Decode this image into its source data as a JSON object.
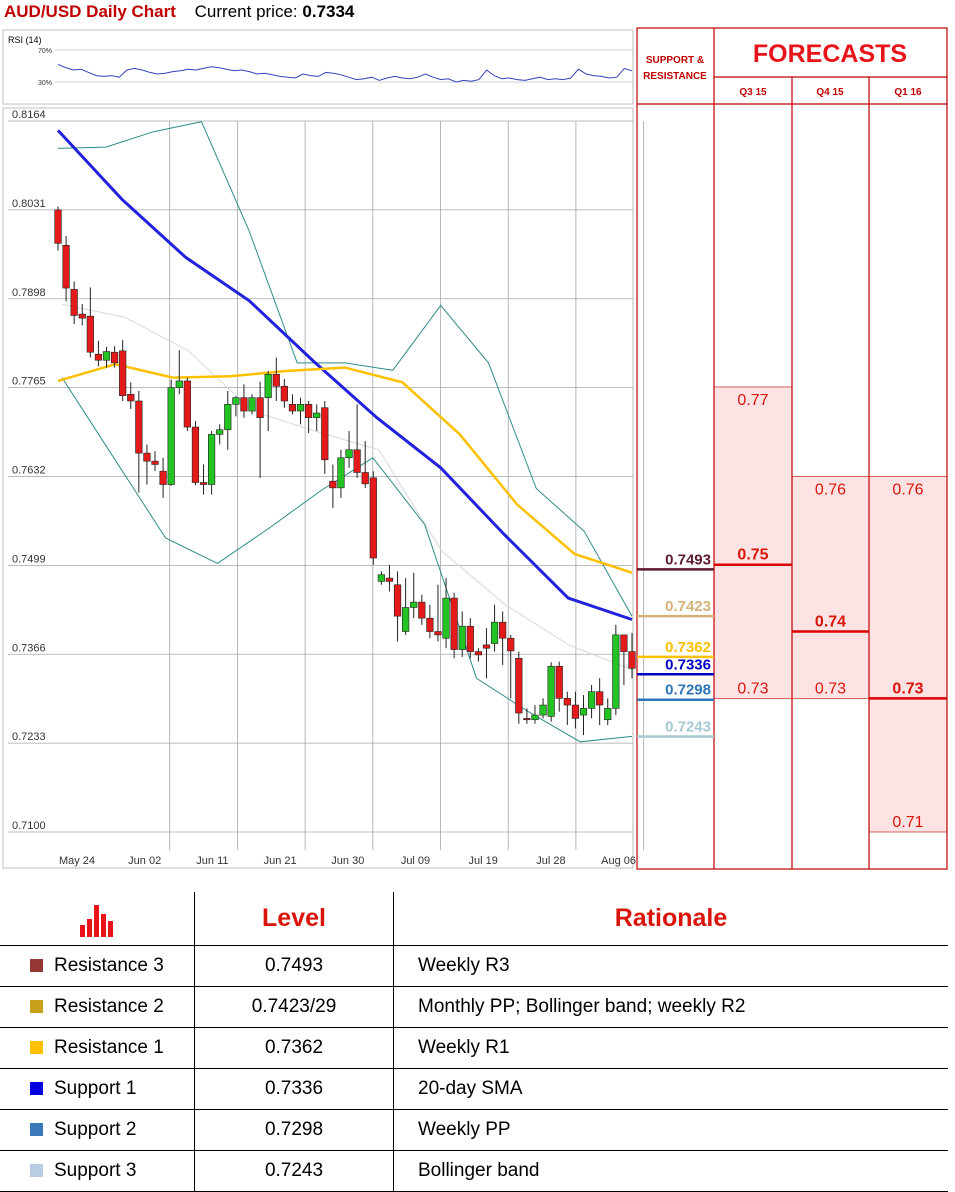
{
  "header": {
    "title": "AUD/USD Daily Chart",
    "current_label": "Current price:",
    "current_value": "0.7334"
  },
  "rsi": {
    "label": "RSI (14)",
    "upper": "70%",
    "lower": "30%",
    "values": [
      52,
      48,
      45,
      46,
      42,
      38,
      37,
      38,
      36,
      45,
      47,
      45,
      42,
      40,
      41,
      43,
      44,
      46,
      45,
      47,
      49,
      48,
      46,
      44,
      45,
      43,
      40,
      41,
      39,
      37,
      36,
      35,
      40,
      38,
      37,
      42,
      41,
      39,
      36,
      33,
      34,
      36,
      32,
      35,
      37,
      35,
      34,
      36,
      40,
      36,
      33,
      34,
      30,
      32,
      31,
      33,
      45,
      38,
      34,
      35,
      33,
      32,
      34,
      36,
      33,
      34,
      33,
      35,
      46,
      40,
      38,
      37,
      35,
      36,
      47,
      44
    ]
  },
  "chart_data": {
    "type": "candlestick",
    "title": "AUD/USD Daily Chart",
    "y_ticks": [
      "0.8164",
      "0.8031",
      "0.7898",
      "0.7765",
      "0.7632",
      "0.7499",
      "0.7366",
      "0.7233",
      "0.7100"
    ],
    "x_ticks": [
      "May 24",
      "Jun 02",
      "Jun 11",
      "Jun 21",
      "Jun 30",
      "Jul 09",
      "Jul 19",
      "Jul 28",
      "Aug 06"
    ],
    "ylim": [
      0.71,
      0.8164
    ],
    "grid": true,
    "candles": [
      {
        "o": 0.8031,
        "h": 0.8036,
        "c": 0.7981,
        "l": 0.797
      },
      {
        "o": 0.7978,
        "h": 0.7992,
        "c": 0.7914,
        "l": 0.7894
      },
      {
        "o": 0.7912,
        "h": 0.7924,
        "c": 0.7873,
        "l": 0.786
      },
      {
        "o": 0.7875,
        "h": 0.789,
        "c": 0.7869,
        "l": 0.7858
      },
      {
        "o": 0.7872,
        "h": 0.7915,
        "c": 0.7818,
        "l": 0.781
      },
      {
        "o": 0.7815,
        "h": 0.7835,
        "c": 0.7806,
        "l": 0.7797
      },
      {
        "o": 0.7806,
        "h": 0.7826,
        "c": 0.7819,
        "l": 0.7795
      },
      {
        "o": 0.7818,
        "h": 0.7827,
        "c": 0.7802,
        "l": 0.7795
      },
      {
        "o": 0.782,
        "h": 0.7836,
        "c": 0.7753,
        "l": 0.7745
      },
      {
        "o": 0.7755,
        "h": 0.7773,
        "c": 0.7745,
        "l": 0.7733
      },
      {
        "o": 0.7745,
        "h": 0.776,
        "c": 0.7667,
        "l": 0.7608
      },
      {
        "o": 0.7667,
        "h": 0.768,
        "c": 0.7655,
        "l": 0.762
      },
      {
        "o": 0.7655,
        "h": 0.767,
        "c": 0.765,
        "l": 0.764
      },
      {
        "o": 0.764,
        "h": 0.766,
        "c": 0.762,
        "l": 0.76
      },
      {
        "o": 0.762,
        "h": 0.7777,
        "c": 0.7765,
        "l": 0.7618
      },
      {
        "o": 0.7765,
        "h": 0.7821,
        "c": 0.7775,
        "l": 0.7755
      },
      {
        "o": 0.7775,
        "h": 0.778,
        "c": 0.7706,
        "l": 0.77
      },
      {
        "o": 0.7706,
        "h": 0.7715,
        "c": 0.7623,
        "l": 0.7619
      },
      {
        "o": 0.7623,
        "h": 0.765,
        "c": 0.762,
        "l": 0.7605
      },
      {
        "o": 0.762,
        "h": 0.77,
        "c": 0.7695,
        "l": 0.7605
      },
      {
        "o": 0.7695,
        "h": 0.771,
        "c": 0.7702,
        "l": 0.768
      },
      {
        "o": 0.7702,
        "h": 0.776,
        "c": 0.774,
        "l": 0.7672
      },
      {
        "o": 0.774,
        "h": 0.7752,
        "c": 0.775,
        "l": 0.7722
      },
      {
        "o": 0.775,
        "h": 0.777,
        "c": 0.773,
        "l": 0.772
      },
      {
        "o": 0.773,
        "h": 0.7755,
        "c": 0.775,
        "l": 0.7725
      },
      {
        "o": 0.775,
        "h": 0.7774,
        "c": 0.772,
        "l": 0.763
      },
      {
        "o": 0.775,
        "h": 0.779,
        "c": 0.7785,
        "l": 0.77
      },
      {
        "o": 0.7785,
        "h": 0.781,
        "c": 0.7767,
        "l": 0.7745
      },
      {
        "o": 0.7767,
        "h": 0.7778,
        "c": 0.7745,
        "l": 0.7735
      },
      {
        "o": 0.774,
        "h": 0.7755,
        "c": 0.773,
        "l": 0.7725
      },
      {
        "o": 0.773,
        "h": 0.775,
        "c": 0.774,
        "l": 0.771
      },
      {
        "o": 0.774,
        "h": 0.7745,
        "c": 0.772,
        "l": 0.7697
      },
      {
        "o": 0.772,
        "h": 0.774,
        "c": 0.7727,
        "l": 0.77
      },
      {
        "o": 0.7735,
        "h": 0.7745,
        "c": 0.7657,
        "l": 0.7636
      },
      {
        "o": 0.7625,
        "h": 0.765,
        "c": 0.7615,
        "l": 0.7585
      },
      {
        "o": 0.7615,
        "h": 0.7672,
        "c": 0.766,
        "l": 0.76
      },
      {
        "o": 0.766,
        "h": 0.77,
        "c": 0.7672,
        "l": 0.7645
      },
      {
        "o": 0.7672,
        "h": 0.774,
        "c": 0.7638,
        "l": 0.763
      },
      {
        "o": 0.7638,
        "h": 0.7685,
        "c": 0.7621,
        "l": 0.7615
      },
      {
        "o": 0.763,
        "h": 0.764,
        "c": 0.751,
        "l": 0.75
      },
      {
        "o": 0.7475,
        "h": 0.749,
        "c": 0.7485,
        "l": 0.747
      },
      {
        "o": 0.748,
        "h": 0.75,
        "c": 0.7475,
        "l": 0.746
      },
      {
        "o": 0.747,
        "h": 0.749,
        "c": 0.7423,
        "l": 0.7385
      },
      {
        "o": 0.74,
        "h": 0.748,
        "c": 0.7436,
        "l": 0.7395
      },
      {
        "o": 0.7436,
        "h": 0.7488,
        "c": 0.7444,
        "l": 0.742
      },
      {
        "o": 0.7444,
        "h": 0.7455,
        "c": 0.742,
        "l": 0.741
      },
      {
        "o": 0.742,
        "h": 0.744,
        "c": 0.74,
        "l": 0.739
      },
      {
        "o": 0.74,
        "h": 0.747,
        "c": 0.7395,
        "l": 0.7385
      },
      {
        "o": 0.739,
        "h": 0.748,
        "c": 0.745,
        "l": 0.7375
      },
      {
        "o": 0.745,
        "h": 0.7458,
        "c": 0.7373,
        "l": 0.736
      },
      {
        "o": 0.7373,
        "h": 0.743,
        "c": 0.7408,
        "l": 0.7362
      },
      {
        "o": 0.7408,
        "h": 0.742,
        "c": 0.737,
        "l": 0.736
      },
      {
        "o": 0.737,
        "h": 0.7375,
        "c": 0.7365,
        "l": 0.7355
      },
      {
        "o": 0.738,
        "h": 0.7405,
        "c": 0.7375,
        "l": 0.733
      },
      {
        "o": 0.7382,
        "h": 0.744,
        "c": 0.7414,
        "l": 0.737
      },
      {
        "o": 0.7414,
        "h": 0.743,
        "c": 0.739,
        "l": 0.735
      },
      {
        "o": 0.739,
        "h": 0.7395,
        "c": 0.7371,
        "l": 0.73
      },
      {
        "o": 0.736,
        "h": 0.737,
        "c": 0.7278,
        "l": 0.7262
      },
      {
        "o": 0.727,
        "h": 0.7285,
        "c": 0.7268,
        "l": 0.7262
      },
      {
        "o": 0.7268,
        "h": 0.729,
        "c": 0.7275,
        "l": 0.7262
      },
      {
        "o": 0.7275,
        "h": 0.73,
        "c": 0.729,
        "l": 0.727
      },
      {
        "o": 0.7273,
        "h": 0.7354,
        "c": 0.7348,
        "l": 0.7265
      },
      {
        "o": 0.7348,
        "h": 0.7355,
        "c": 0.73,
        "l": 0.728
      },
      {
        "o": 0.73,
        "h": 0.731,
        "c": 0.729,
        "l": 0.726
      },
      {
        "o": 0.729,
        "h": 0.731,
        "c": 0.727,
        "l": 0.7255
      },
      {
        "o": 0.7275,
        "h": 0.7305,
        "c": 0.7285,
        "l": 0.7245
      },
      {
        "o": 0.7285,
        "h": 0.732,
        "c": 0.731,
        "l": 0.727
      },
      {
        "o": 0.731,
        "h": 0.733,
        "c": 0.729,
        "l": 0.726
      },
      {
        "o": 0.7268,
        "h": 0.73,
        "c": 0.7285,
        "l": 0.726
      },
      {
        "o": 0.7285,
        "h": 0.741,
        "c": 0.7395,
        "l": 0.7275
      },
      {
        "o": 0.7395,
        "h": 0.7395,
        "c": 0.737,
        "l": 0.732
      },
      {
        "o": 0.737,
        "h": 0.7398,
        "c": 0.7345,
        "l": 0.733
      }
    ],
    "sma200": [
      0.815,
      0.8047,
      0.796,
      0.7895,
      0.7805,
      0.772,
      0.7645,
      0.7545,
      0.745,
      0.7418
    ],
    "sma50": [
      0.7775,
      0.78,
      0.778,
      0.7782,
      0.779,
      0.7795,
      0.7773,
      0.7695,
      0.759,
      0.7516,
      0.7488
    ],
    "bb_upper": [
      0.8123,
      0.8125,
      0.8148,
      0.8163,
      0.7999,
      0.7802,
      0.7802,
      0.7791,
      0.7888,
      0.7802,
      0.7614,
      0.755,
      0.7423
    ],
    "bb_mid": [
      0.789,
      0.787,
      0.782,
      0.773,
      0.77,
      0.7672,
      0.752,
      0.744,
      0.738,
      0.7343
    ],
    "bb_lower": [
      0.778,
      0.766,
      0.754,
      0.7502,
      0.7555,
      0.7611,
      0.766,
      0.756,
      0.733,
      0.728,
      0.7235,
      0.7243
    ]
  },
  "sr_panel": {
    "title": "SUPPORT & RESISTANCE",
    "levels": [
      {
        "value": "0.7493",
        "level": 0.7493,
        "color": "#5b1a2e",
        "text_color": "#5b1a2e",
        "bold": true
      },
      {
        "value": "0.7423",
        "level": 0.7423,
        "color": "#d4b27a",
        "text_color": "#d4b27a",
        "bold": true
      },
      {
        "value": "0.7362",
        "level": 0.7362,
        "color": "#ffc000",
        "text_color": "#ffc000",
        "bold": true
      },
      {
        "value": "0.7336",
        "level": 0.7336,
        "color": "#0000c0",
        "text_color": "#0000c0",
        "bold": true
      },
      {
        "value": "0.7298",
        "level": 0.7298,
        "color": "#2e75b6",
        "text_color": "#2e75b6",
        "bold": true
      },
      {
        "value": "0.7243",
        "level": 0.7243,
        "color": "#a6c8d4",
        "text_color": "#a6c8d4",
        "bold": true
      }
    ]
  },
  "forecasts": {
    "title": "FORECASTS",
    "quarters": [
      {
        "label": "Q3 15",
        "high": "0.77",
        "high_level": 0.7766,
        "mid": "0.75",
        "mid_level": 0.75,
        "low": "0.73",
        "low_level": 0.73
      },
      {
        "label": "Q4 15",
        "high": "0.76",
        "high_level": 0.7632,
        "mid": "0.74",
        "mid_level": 0.74,
        "low": "0.73",
        "low_level": 0.73
      },
      {
        "label": "Q1 16",
        "high": "0.76",
        "high_level": 0.7632,
        "mid": "0.73",
        "mid_level": 0.73,
        "low": "0.71",
        "low_level": 0.71
      }
    ]
  },
  "table": {
    "headers": {
      "level": "Level",
      "rationale": "Rationale"
    },
    "rows": [
      {
        "name": "Resistance 3",
        "level": "0.7493",
        "rationale": "Weekly R3",
        "color": "#953735"
      },
      {
        "name": "Resistance 2",
        "level": "0.7423/29",
        "rationale": "Monthly PP; Bollinger band; weekly R2",
        "color": "#c9a01a"
      },
      {
        "name": "Resistance 1",
        "level": "0.7362",
        "rationale": "Weekly R1",
        "color": "#ffc000"
      },
      {
        "name": "Support 1",
        "level": "0.7336",
        "rationale": "20-day SMA",
        "color": "#0000e0"
      },
      {
        "name": "Support 2",
        "level": "0.7298",
        "rationale": "Weekly PP",
        "color": "#3b78b8"
      },
      {
        "name": "Support 3",
        "level": "0.7243",
        "rationale": "Bollinger band",
        "color": "#b8cce4"
      }
    ]
  }
}
